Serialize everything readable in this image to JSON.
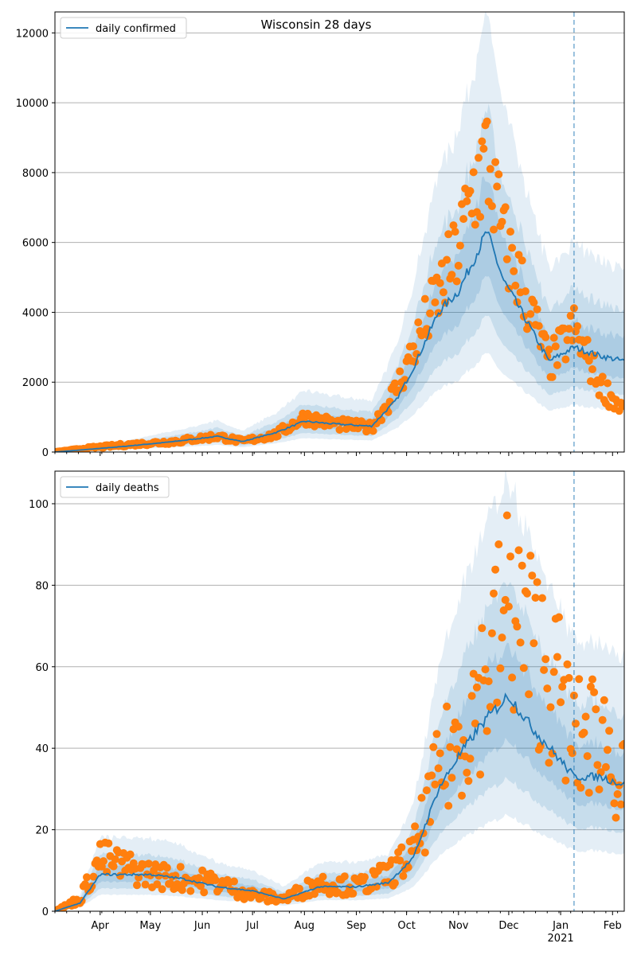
{
  "title": "Wisconsin 28 days",
  "colors": {
    "line": "#1f77b4",
    "points": "#ff7f0e",
    "band": "#1f77b4",
    "grid": "#b0b0b0",
    "vline": "#1f77b4"
  },
  "x_ticks": {
    "major": [
      "Apr",
      "May",
      "Jun",
      "Jul",
      "Aug",
      "Sep",
      "Oct",
      "Nov",
      "Dec",
      "Jan",
      "Feb"
    ],
    "year_label": "2021",
    "range": [
      "2020-03-05",
      "2021-02-08"
    ],
    "marker_date": "2021-01-09"
  },
  "chart_data": [
    {
      "type": "scatter",
      "legend": "daily confirmed",
      "legend_loc": "upper-left",
      "grid": "y",
      "ylim": [
        0,
        12600
      ],
      "yticks": [
        0,
        2000,
        4000,
        6000,
        8000,
        10000,
        12000
      ],
      "x": [
        "2020-03-05",
        "2020-03-26",
        "2020-04-15",
        "2020-05-15",
        "2020-06-10",
        "2020-06-25",
        "2020-07-15",
        "2020-08-01",
        "2020-08-20",
        "2020-09-10",
        "2020-09-25",
        "2020-10-05",
        "2020-10-20",
        "2020-11-01",
        "2020-11-10",
        "2020-11-18",
        "2020-11-28",
        "2020-12-10",
        "2020-12-25",
        "2021-01-09",
        "2021-01-25",
        "2021-02-08"
      ],
      "observed": [
        0,
        120,
        200,
        300,
        450,
        300,
        500,
        1000,
        800,
        700,
        1800,
        2900,
        4500,
        5800,
        7500,
        8400,
        6000,
        4600,
        2500,
        3500,
        1900,
        1200
      ],
      "model": [
        0,
        80,
        160,
        300,
        450,
        300,
        560,
        880,
        800,
        740,
        1500,
        2400,
        4000,
        4600,
        5500,
        6300,
        4900,
        3900,
        2600,
        3000,
        2750,
        2600
      ]
    },
    {
      "type": "scatter",
      "legend": "daily deaths",
      "legend_loc": "upper-left",
      "grid": "y",
      "ylim": [
        0,
        108
      ],
      "yticks": [
        0,
        20,
        40,
        60,
        80,
        100
      ],
      "x": [
        "2020-03-05",
        "2020-03-20",
        "2020-04-01",
        "2020-04-15",
        "2020-05-01",
        "2020-05-20",
        "2020-06-10",
        "2020-07-01",
        "2020-07-20",
        "2020-08-10",
        "2020-09-01",
        "2020-09-20",
        "2020-10-05",
        "2020-10-20",
        "2020-11-01",
        "2020-11-15",
        "2020-12-01",
        "2020-12-15",
        "2021-01-01",
        "2021-01-09",
        "2021-01-25",
        "2021-02-08"
      ],
      "observed": [
        0,
        3,
        13,
        11,
        9,
        8,
        7,
        4,
        3,
        7,
        6,
        9,
        14,
        33,
        42,
        55,
        75,
        65,
        53,
        41,
        45,
        30
      ],
      "model": [
        0,
        2,
        9,
        9,
        9,
        8,
        6,
        5,
        3,
        6,
        6,
        7,
        13,
        30,
        38,
        46,
        53,
        45,
        37,
        33,
        33,
        31
      ]
    }
  ]
}
